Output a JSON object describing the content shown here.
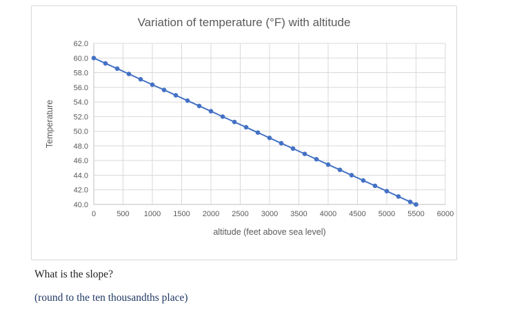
{
  "chart_data": {
    "type": "line",
    "title": "Variation of temperature (°F) with altitude",
    "xlabel": "altitude (feet above sea level)",
    "ylabel": "Temperature",
    "xlim": [
      0,
      6000
    ],
    "ylim": [
      40,
      62
    ],
    "grid": true,
    "legend": "none",
    "grid_color": "#d9d9d9",
    "axis_color": "#bfbfbf",
    "x_ticks": [
      0,
      500,
      1000,
      1500,
      2000,
      2500,
      3000,
      3500,
      4000,
      4500,
      5000,
      5500,
      6000
    ],
    "x_tick_labels": [
      "0",
      "500",
      "1000",
      "1500",
      "2000",
      "2500",
      "3000",
      "3500",
      "4000",
      "4500",
      "5000",
      "5500",
      "6000"
    ],
    "y_ticks": [
      40,
      42,
      44,
      46,
      48,
      50,
      52,
      54,
      56,
      58,
      60,
      62
    ],
    "y_tick_labels": [
      "40.0",
      "42.0",
      "44.0",
      "46.0",
      "48.0",
      "50.0",
      "52.0",
      "54.0",
      "56.0",
      "58.0",
      "60.0",
      "62.0"
    ],
    "series": [
      {
        "name": "temperature",
        "color": "#4472c4",
        "marker": "circle",
        "x": [
          0,
          200,
          400,
          600,
          800,
          1000,
          1200,
          1400,
          1600,
          1800,
          2000,
          2200,
          2400,
          2600,
          2800,
          3000,
          3200,
          3400,
          3600,
          3800,
          4000,
          4200,
          4400,
          4600,
          4800,
          5000,
          5200,
          5400,
          5500
        ],
        "y": [
          60.0,
          59.27,
          58.55,
          57.82,
          57.09,
          56.36,
          55.64,
          54.91,
          54.18,
          53.45,
          52.73,
          52.0,
          51.27,
          50.55,
          49.82,
          49.09,
          48.36,
          47.64,
          46.91,
          46.18,
          45.45,
          44.73,
          44.0,
          43.27,
          42.55,
          41.82,
          41.09,
          40.36,
          40.0
        ]
      }
    ]
  },
  "question": {
    "prompt": "What is the slope?",
    "hint": "(round to the ten thousandths place)"
  }
}
